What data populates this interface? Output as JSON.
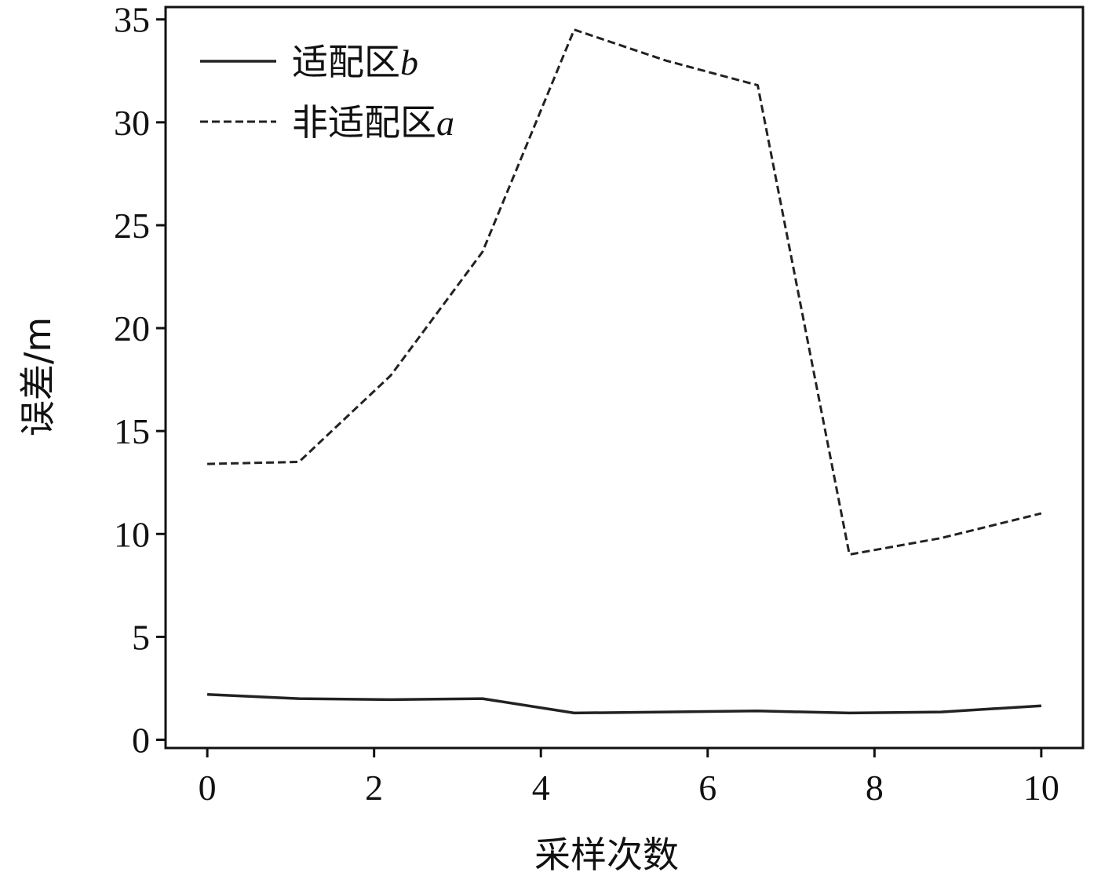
{
  "chart_data": {
    "type": "line",
    "xlabel": "采样次数",
    "ylabel": "误差/m",
    "xlim": [
      -0.5,
      10.5
    ],
    "ylim": [
      -0.4,
      35.6
    ],
    "xticks": [
      0,
      2,
      4,
      6,
      8,
      10
    ],
    "yticks": [
      0,
      5,
      10,
      15,
      20,
      25,
      30,
      35
    ],
    "grid": false,
    "legend": "top-left",
    "x": [
      0,
      1.1,
      2.2,
      3.3,
      4.4,
      5.5,
      6.6,
      7.7,
      8.8,
      10
    ],
    "series": [
      {
        "name": "适配区",
        "name_suffix": "b",
        "style": "solid",
        "color": "#222222",
        "values": [
          2.2,
          2.0,
          1.95,
          2.0,
          1.3,
          1.35,
          1.4,
          1.3,
          1.35,
          1.65
        ]
      },
      {
        "name": "非适配区",
        "name_suffix": "a",
        "style": "dashed",
        "color": "#222222",
        "values": [
          13.4,
          13.5,
          17.7,
          23.7,
          34.5,
          33.0,
          31.8,
          9.0,
          9.8,
          11.0
        ]
      }
    ]
  }
}
